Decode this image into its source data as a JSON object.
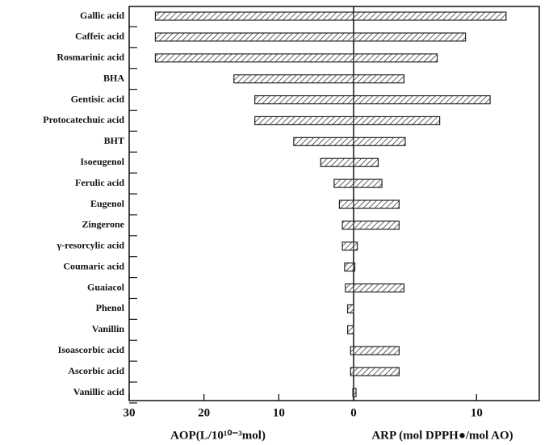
{
  "chart_data": {
    "type": "diverging-bar",
    "categories": [
      "Gallic acid",
      "Caffeic acid",
      "Rosmarinic acid",
      "BHA",
      "Gentisic acid",
      "Protocatechuic acid",
      "BHT",
      "Isoeugenol",
      "Ferulic acid",
      "Eugenol",
      "Zingerone",
      "γ-resorcylic acid",
      "Coumaric acid",
      "Guaiacol",
      "Phenol",
      "Vanillin",
      "Isoascorbic acid",
      "Ascorbic acid",
      "Vanillic acid"
    ],
    "series": [
      {
        "name": "AOP",
        "color": "#222222",
        "values": [
          26.5,
          26.5,
          26.5,
          16.0,
          13.2,
          13.2,
          8.0,
          4.4,
          2.6,
          1.9,
          1.5,
          1.5,
          1.2,
          1.1,
          0.8,
          0.8,
          0.4,
          0.4,
          0.1
        ]
      },
      {
        "name": "ARP",
        "color": "#222222",
        "axis": "x2",
        "values": [
          12.4,
          9.1,
          6.8,
          4.1,
          11.1,
          7.0,
          4.2,
          2.0,
          2.3,
          3.7,
          3.7,
          0.3,
          0.1,
          4.1,
          0,
          0,
          3.7,
          3.7,
          0.2
        ]
      }
    ],
    "xlabel": "AOP(L/10¹⁰⁻³mol)",
    "x2label": "ARP (mol DPPH●/mol AO)",
    "xlim": [
      30,
      0
    ],
    "xticks": [
      30,
      20,
      10,
      0
    ],
    "x2lim": [
      0,
      15.1
    ],
    "x2ticks": [
      10
    ]
  }
}
